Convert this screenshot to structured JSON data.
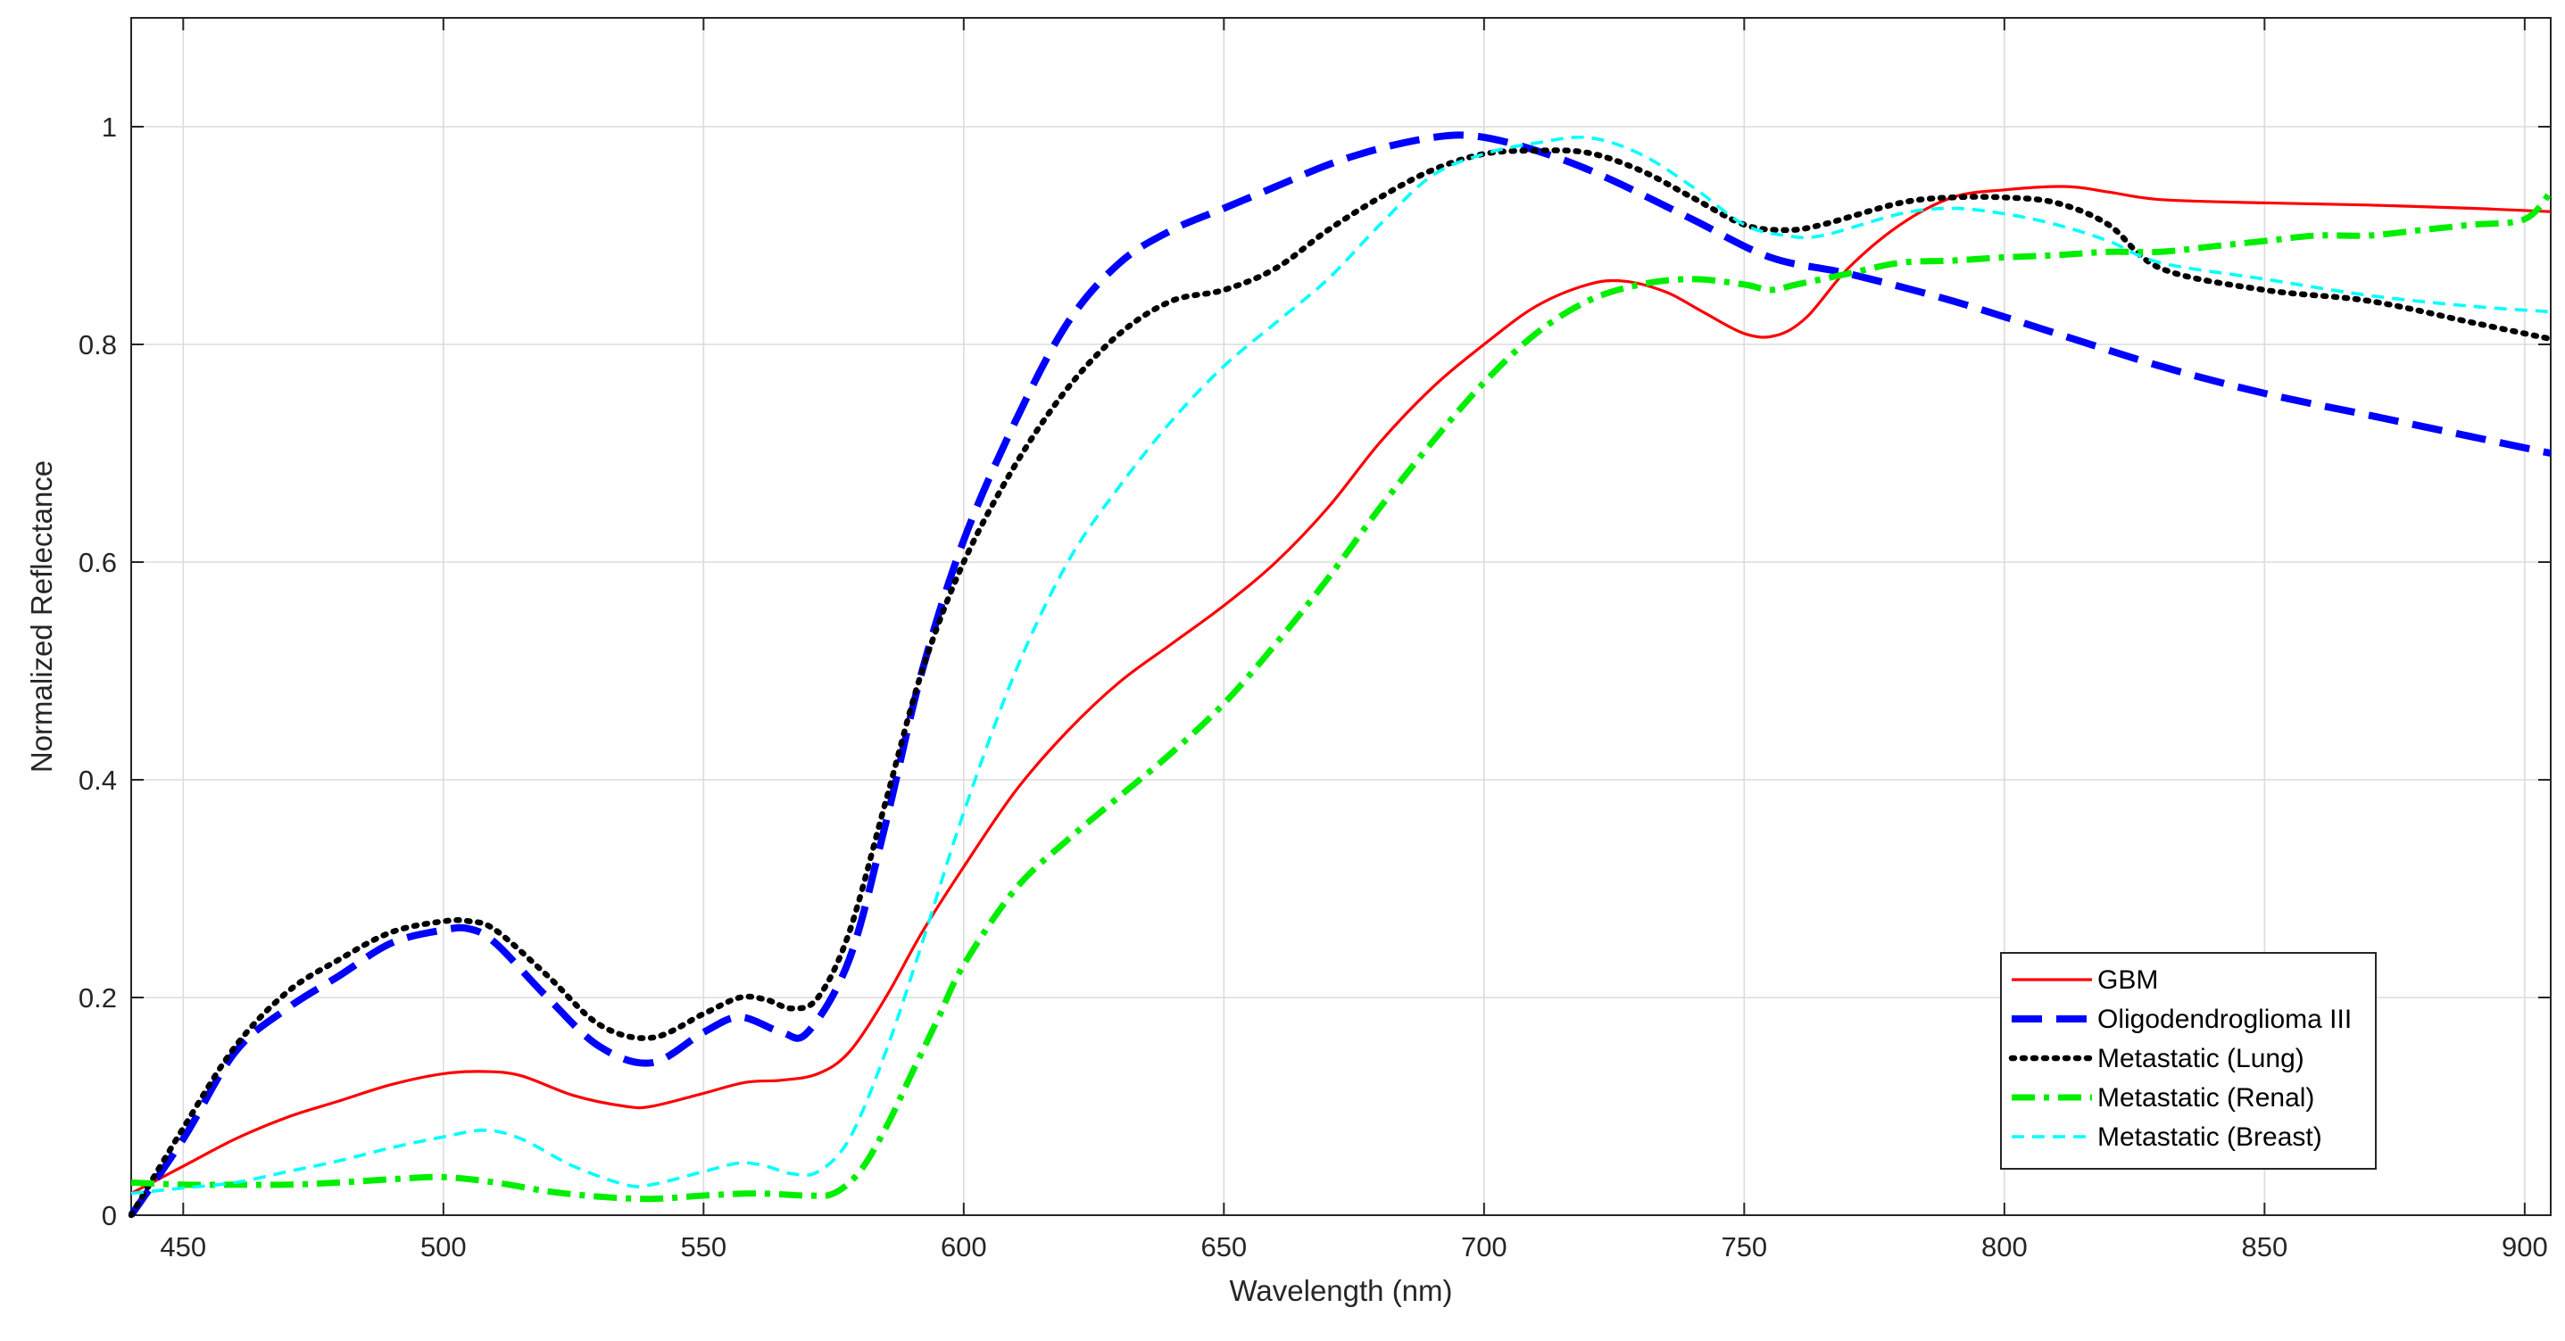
{
  "chart_data": {
    "type": "line",
    "xlabel": "Wavelength (nm)",
    "ylabel": "Normalized Reflectance",
    "xlim": [
      440,
      905
    ],
    "ylim": [
      0,
      1.1
    ],
    "xticks": [
      450,
      500,
      550,
      600,
      650,
      700,
      750,
      800,
      850,
      900
    ],
    "yticks": [
      0,
      0.2,
      0.4,
      0.6,
      0.8,
      1
    ],
    "ytick_labels": [
      "0",
      "0.2",
      "0.4",
      "0.6",
      "0.8",
      "1"
    ],
    "grid": true,
    "legend_position": "bottom-right",
    "series": [
      {
        "name": "GBM",
        "color": "#ff0000",
        "style": "solid",
        "x": [
          440,
          450,
          460,
          470,
          480,
          490,
          500,
          508,
          515,
          525,
          535,
          540,
          550,
          558,
          565,
          572,
          578,
          585,
          592,
          600,
          610,
          620,
          630,
          640,
          650,
          660,
          670,
          680,
          690,
          700,
          710,
          720,
          727,
          735,
          742,
          750,
          756,
          762,
          770,
          780,
          790,
          800,
          812,
          820,
          830,
          850,
          870,
          890,
          905
        ],
        "y": [
          0.02,
          0.045,
          0.07,
          0.09,
          0.105,
          0.12,
          0.13,
          0.132,
          0.128,
          0.11,
          0.1,
          0.1,
          0.112,
          0.122,
          0.124,
          0.13,
          0.15,
          0.2,
          0.26,
          0.32,
          0.39,
          0.445,
          0.49,
          0.525,
          0.56,
          0.6,
          0.65,
          0.71,
          0.76,
          0.8,
          0.835,
          0.855,
          0.858,
          0.848,
          0.83,
          0.81,
          0.808,
          0.825,
          0.87,
          0.91,
          0.935,
          0.942,
          0.945,
          0.94,
          0.933,
          0.93,
          0.928,
          0.925,
          0.922
        ]
      },
      {
        "name": "Oligodendroglioma III",
        "color": "#0000ff",
        "style": "dashed",
        "x": [
          440,
          450,
          460,
          470,
          480,
          490,
          500,
          505,
          510,
          520,
          530,
          540,
          550,
          557,
          565,
          570,
          578,
          585,
          592,
          600,
          610,
          620,
          630,
          640,
          650,
          660,
          670,
          680,
          690,
          697,
          705,
          715,
          725,
          740,
          755,
          770,
          790,
          810,
          830,
          850,
          870,
          890,
          905
        ],
        "y": [
          0.0,
          0.07,
          0.15,
          0.19,
          0.22,
          0.25,
          0.262,
          0.263,
          0.25,
          0.2,
          0.155,
          0.14,
          0.168,
          0.182,
          0.168,
          0.168,
          0.235,
          0.36,
          0.5,
          0.62,
          0.73,
          0.82,
          0.875,
          0.905,
          0.925,
          0.945,
          0.965,
          0.98,
          0.99,
          0.992,
          0.985,
          0.97,
          0.95,
          0.915,
          0.88,
          0.865,
          0.84,
          0.81,
          0.78,
          0.755,
          0.735,
          0.715,
          0.7
        ]
      },
      {
        "name": "Metastatic (Lung)",
        "color": "#000000",
        "style": "dotted",
        "x": [
          440,
          450,
          460,
          470,
          480,
          490,
          500,
          505,
          510,
          520,
          530,
          540,
          550,
          557,
          562,
          567,
          572,
          578,
          585,
          592,
          600,
          610,
          620,
          630,
          640,
          650,
          660,
          670,
          680,
          690,
          700,
          710,
          720,
          730,
          740,
          750,
          758,
          765,
          780,
          790,
          800,
          810,
          820,
          830,
          850,
          870,
          890,
          905
        ],
        "y": [
          0.0,
          0.08,
          0.155,
          0.205,
          0.235,
          0.26,
          0.27,
          0.27,
          0.262,
          0.22,
          0.175,
          0.163,
          0.185,
          0.2,
          0.198,
          0.19,
          0.2,
          0.26,
          0.38,
          0.5,
          0.6,
          0.69,
          0.76,
          0.81,
          0.84,
          0.85,
          0.87,
          0.905,
          0.935,
          0.96,
          0.975,
          0.978,
          0.976,
          0.96,
          0.935,
          0.91,
          0.905,
          0.91,
          0.93,
          0.935,
          0.935,
          0.93,
          0.91,
          0.87,
          0.85,
          0.84,
          0.82,
          0.805
        ]
      },
      {
        "name": "Metastatic (Renal)",
        "color": "#00ee00",
        "style": "dashdot",
        "x": [
          440,
          450,
          460,
          470,
          480,
          490,
          500,
          510,
          520,
          530,
          540,
          550,
          560,
          570,
          575,
          580,
          585,
          590,
          595,
          600,
          610,
          620,
          630,
          640,
          650,
          660,
          670,
          680,
          690,
          700,
          710,
          720,
          730,
          740,
          750,
          755,
          760,
          770,
          780,
          790,
          800,
          810,
          820,
          830,
          840,
          850,
          860,
          870,
          880,
          890,
          900,
          905
        ],
        "y": [
          0.03,
          0.028,
          0.028,
          0.028,
          0.03,
          0.033,
          0.035,
          0.03,
          0.022,
          0.017,
          0.015,
          0.018,
          0.02,
          0.018,
          0.02,
          0.04,
          0.08,
          0.13,
          0.18,
          0.23,
          0.3,
          0.345,
          0.385,
          0.425,
          0.47,
          0.525,
          0.585,
          0.65,
          0.71,
          0.765,
          0.81,
          0.84,
          0.855,
          0.86,
          0.855,
          0.85,
          0.855,
          0.865,
          0.875,
          0.877,
          0.88,
          0.882,
          0.885,
          0.885,
          0.89,
          0.895,
          0.9,
          0.9,
          0.905,
          0.91,
          0.915,
          0.94
        ]
      },
      {
        "name": "Metastatic (Breast)",
        "color": "#00ffff",
        "style": "dashed-thin",
        "x": [
          440,
          450,
          460,
          470,
          480,
          490,
          500,
          508,
          515,
          525,
          535,
          540,
          550,
          557,
          562,
          567,
          572,
          578,
          585,
          592,
          600,
          610,
          620,
          630,
          640,
          650,
          660,
          670,
          680,
          690,
          700,
          710,
          720,
          730,
          740,
          750,
          758,
          765,
          780,
          790,
          800,
          810,
          820,
          830,
          850,
          870,
          890,
          905
        ],
        "y": [
          0.02,
          0.025,
          0.03,
          0.04,
          0.05,
          0.062,
          0.072,
          0.078,
          0.07,
          0.045,
          0.028,
          0.028,
          0.04,
          0.048,
          0.045,
          0.038,
          0.04,
          0.07,
          0.15,
          0.25,
          0.37,
          0.5,
          0.6,
          0.67,
          0.73,
          0.78,
          0.82,
          0.86,
          0.91,
          0.955,
          0.975,
          0.985,
          0.99,
          0.975,
          0.945,
          0.91,
          0.9,
          0.9,
          0.92,
          0.925,
          0.92,
          0.91,
          0.895,
          0.875,
          0.86,
          0.845,
          0.835,
          0.83
        ]
      }
    ]
  }
}
